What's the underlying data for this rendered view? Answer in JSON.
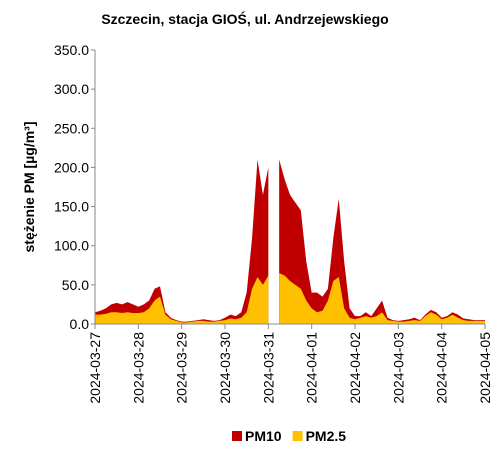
{
  "chart_data": {
    "type": "area",
    "title": "Szczecin, stacja GIOŚ, ul. Andrzejewskiego",
    "y_label": "stężenie PM [µg/m³]",
    "categories": [
      "2024-03-27",
      null,
      null,
      null,
      null,
      null,
      null,
      null,
      "2024-03-28",
      null,
      null,
      null,
      null,
      null,
      null,
      null,
      "2024-03-29",
      null,
      null,
      null,
      null,
      null,
      null,
      null,
      "2024-03-30",
      null,
      null,
      null,
      null,
      null,
      null,
      null,
      "2024-03-31",
      null,
      null,
      null,
      null,
      null,
      null,
      null,
      "2024-04-01",
      null,
      null,
      null,
      null,
      null,
      null,
      null,
      "2024-04-02",
      null,
      null,
      null,
      null,
      null,
      null,
      null,
      "2024-04-03",
      null,
      null,
      null,
      null,
      null,
      null,
      null,
      "2024-04-04",
      null,
      null,
      null,
      null,
      null,
      null,
      null,
      "2024-04-05"
    ],
    "series": [
      {
        "name": "PM10",
        "color": "#c00000",
        "values": [
          15,
          17,
          20,
          25,
          27,
          25,
          28,
          25,
          22,
          25,
          30,
          45,
          48,
          15,
          8,
          5,
          3,
          3,
          4,
          5,
          6,
          5,
          4,
          5,
          8,
          12,
          10,
          15,
          40,
          110,
          210,
          165,
          200,
          null,
          210,
          185,
          165,
          155,
          145,
          80,
          40,
          40,
          35,
          45,
          110,
          160,
          80,
          20,
          10,
          10,
          15,
          10,
          20,
          30,
          8,
          5,
          4,
          5,
          6,
          8,
          5,
          12,
          18,
          15,
          8,
          10,
          15,
          12,
          7,
          6,
          5,
          5,
          5
        ]
      },
      {
        "name": "PM2.5",
        "color": "#ffc000",
        "values": [
          12,
          12,
          13,
          15,
          15,
          14,
          15,
          14,
          14,
          15,
          20,
          30,
          35,
          12,
          6,
          4,
          2,
          2,
          3,
          4,
          4,
          3,
          3,
          4,
          5,
          7,
          6,
          8,
          15,
          45,
          60,
          50,
          62,
          null,
          65,
          62,
          55,
          50,
          45,
          30,
          20,
          15,
          17,
          30,
          55,
          60,
          20,
          8,
          6,
          8,
          10,
          8,
          10,
          15,
          5,
          4,
          3,
          3,
          4,
          5,
          4,
          10,
          15,
          12,
          6,
          8,
          12,
          8,
          5,
          4,
          4,
          4,
          4
        ]
      }
    ],
    "ylim": [
      0,
      350
    ],
    "yticks": [
      {
        "value": 0,
        "label": "0.0"
      },
      {
        "value": 50,
        "label": "50.0"
      },
      {
        "value": 100,
        "label": "100.0"
      },
      {
        "value": 150,
        "label": "150.0"
      },
      {
        "value": 200,
        "label": "200.0"
      },
      {
        "value": 250,
        "label": "250.0"
      },
      {
        "value": 300,
        "label": "300.0"
      },
      {
        "value": 350,
        "label": "350.0"
      }
    ],
    "legend": "bottom"
  }
}
